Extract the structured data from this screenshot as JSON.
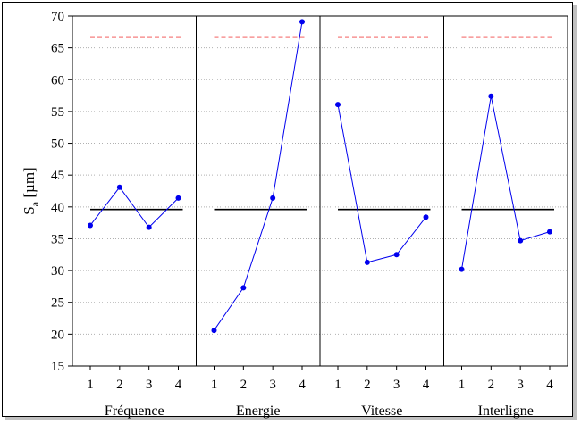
{
  "chart_data": {
    "type": "line",
    "ylabel": "S",
    "ylabel_subscript": "a",
    "ylabel_unit": "[µm]",
    "ylim": [
      15,
      70
    ],
    "yticks": [
      15,
      20,
      25,
      30,
      35,
      40,
      45,
      50,
      55,
      60,
      65,
      70
    ],
    "grid": "horizontal dotted",
    "x_levels": [
      1,
      2,
      3,
      4
    ],
    "mean_line": 39.6,
    "limit_line": 66.7,
    "colors": {
      "series": "#0000ee",
      "mean": "#000000",
      "limit": "#ee0000"
    },
    "panels": [
      {
        "name": "Fréquence",
        "values": [
          37.1,
          43.1,
          36.8,
          41.4
        ]
      },
      {
        "name": "Energie",
        "values": [
          20.6,
          27.3,
          41.4,
          69.1
        ]
      },
      {
        "name": "Vitesse",
        "values": [
          56.1,
          31.3,
          32.5,
          38.4
        ]
      },
      {
        "name": "Interligne",
        "values": [
          30.2,
          57.4,
          34.7,
          36.1
        ]
      }
    ]
  }
}
